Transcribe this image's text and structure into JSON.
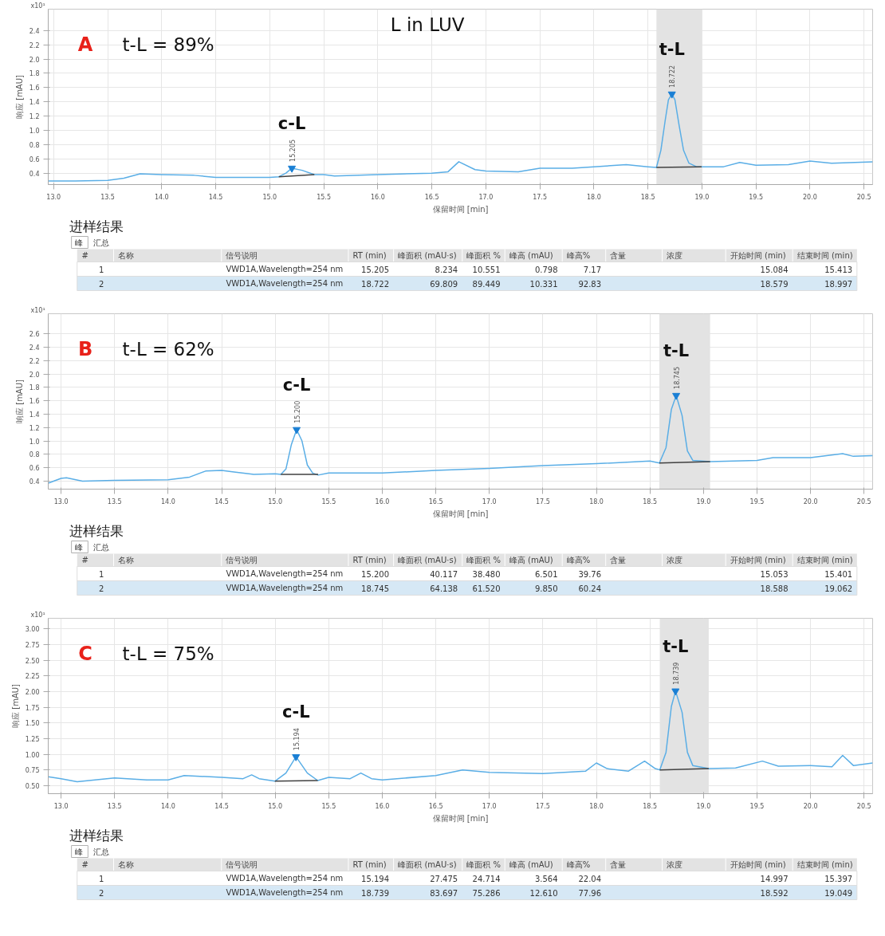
{
  "chart_data": [
    {
      "type": "line",
      "title": "A",
      "subtitle": "t-L = 89%",
      "xlabel": "保留时间 [min]",
      "ylabel": "响应 [mAU]",
      "annotations": [
        "x10¹",
        "L in LUV",
        {
          "text": "15.205",
          "x": 15.205,
          "y": 0.47
        },
        {
          "text": "c-L",
          "x": 15.205,
          "y": 0.47
        },
        {
          "text": "18.722",
          "x": 18.722,
          "y": 1.51
        },
        {
          "text": "t-L",
          "x": 18.722,
          "y": 1.51
        }
      ],
      "xlim": [
        12.95,
        20.58
      ],
      "ylim": [
        0.24,
        2.7
      ],
      "xticks": [
        {
          "value": 13,
          "label": "13.0"
        },
        13.5,
        {
          "value": 14,
          "label": "14.0"
        },
        14.5,
        {
          "value": 15,
          "label": "15.0"
        },
        15.5,
        {
          "value": 16,
          "label": "16.0"
        },
        16.5,
        {
          "value": 17,
          "label": "17.0"
        },
        17.5,
        {
          "value": 18,
          "label": "18.0"
        },
        18.5,
        {
          "value": 19,
          "label": "19.0"
        },
        19.5,
        {
          "value": 20,
          "label": "20.0"
        },
        20.5
      ],
      "yticks": [
        0.4,
        0.6,
        0.8,
        {
          "value": 1,
          "label": "1.0"
        },
        1.2,
        1.4,
        1.6,
        1.8,
        {
          "value": 2,
          "label": "2.0"
        },
        2.2,
        2.4
      ],
      "grid": true,
      "bands": [
        {
          "axis": "x",
          "from": 18.579,
          "to": 18.997,
          "color": "#e3e3e3"
        }
      ],
      "series": [
        {
          "type": "line",
          "color": "#5aaee6",
          "x": [
            12.95,
            13.2,
            13.5,
            13.65,
            13.8,
            14.0,
            14.3,
            14.5,
            14.8,
            15.0,
            15.084,
            15.15,
            15.205,
            15.3,
            15.413,
            15.5,
            15.6,
            16.0,
            16.5,
            16.65,
            16.75,
            16.9,
            17.0,
            17.3,
            17.5,
            17.8,
            18.0,
            18.3,
            18.5,
            18.579,
            18.62,
            18.66,
            18.69,
            18.722,
            18.75,
            18.79,
            18.83,
            18.88,
            18.95,
            18.997,
            19.2,
            19.35,
            19.5,
            19.8,
            20.0,
            20.2,
            20.58
          ],
          "values": [
            0.29,
            0.29,
            0.3,
            0.33,
            0.39,
            0.38,
            0.37,
            0.34,
            0.34,
            0.34,
            0.35,
            0.4,
            0.47,
            0.44,
            0.38,
            0.38,
            0.36,
            0.38,
            0.4,
            0.42,
            0.56,
            0.45,
            0.43,
            0.42,
            0.47,
            0.47,
            0.49,
            0.52,
            0.49,
            0.48,
            0.72,
            1.14,
            1.43,
            1.51,
            1.43,
            1.06,
            0.72,
            0.54,
            0.49,
            0.49,
            0.49,
            0.55,
            0.51,
            0.52,
            0.57,
            0.54,
            0.56
          ]
        },
        {
          "type": "line",
          "color": "#404040",
          "x": [
            15.084,
            15.413
          ],
          "values": [
            0.35,
            0.38
          ]
        },
        {
          "type": "line",
          "color": "#404040",
          "x": [
            18.579,
            18.997
          ],
          "values": [
            0.48,
            0.49
          ]
        },
        {
          "type": "scatter",
          "marker": "triangle",
          "color": "#1a7fd4",
          "x": [
            15.205,
            18.722
          ],
          "values": [
            0.47,
            1.51
          ]
        }
      ]
    },
    {
      "type": "other",
      "title": "进样结果",
      "annotations": [
        "峰",
        "汇总"
      ],
      "categories": [
        "#",
        "名称",
        "信号说明",
        "RT (min)",
        "峰面积 (mAU·s)",
        "峰面积 %",
        "峰高 (mAU)",
        "峰高%",
        "含量",
        "浓度",
        "开始时间 (min)",
        "结束时间 (min)"
      ],
      "cell_labels": [
        [
          "1",
          null,
          "VWD1A,Wavelength=254 nm",
          "15.205",
          "8.234",
          "10.551",
          "0.798",
          "7.17",
          null,
          null,
          "15.084",
          "15.413"
        ],
        [
          "2",
          null,
          "VWD1A,Wavelength=254 nm",
          "18.722",
          "69.809",
          "89.449",
          "10.331",
          "92.83",
          null,
          null,
          "18.579",
          "18.997"
        ]
      ],
      "colors": [
        "#e3e3e3",
        "#ffffff",
        "#d6e8f5"
      ]
    },
    {
      "type": "line",
      "title": "B",
      "subtitle": "t-L = 62%",
      "xlabel": "保留时间 [min]",
      "ylabel": "响应 [mAU]",
      "annotations": [
        "x10¹",
        {
          "text": "15.200",
          "x": 15.2,
          "y": 1.17
        },
        {
          "text": "c-L",
          "x": 15.2,
          "y": 1.17
        },
        {
          "text": "18.745",
          "x": 18.745,
          "y": 1.68
        },
        {
          "text": "t-L",
          "x": 18.745,
          "y": 1.68
        }
      ],
      "xlim": [
        12.88,
        20.58
      ],
      "ylim": [
        0.28,
        2.9
      ],
      "xticks": [
        {
          "value": 13,
          "label": "13.0"
        },
        13.5,
        {
          "value": 14,
          "label": "14.0"
        },
        14.5,
        {
          "value": 15,
          "label": "15.0"
        },
        15.5,
        {
          "value": 16,
          "label": "16.0"
        },
        16.5,
        {
          "value": 17,
          "label": "17.0"
        },
        17.5,
        {
          "value": 18,
          "label": "18.0"
        },
        18.5,
        {
          "value": 19,
          "label": "19.0"
        },
        19.5,
        {
          "value": 20,
          "label": "20.0"
        },
        20.5
      ],
      "yticks": [
        0.4,
        0.6,
        0.8,
        {
          "value": 1,
          "label": "1.0"
        },
        1.2,
        1.4,
        1.6,
        1.8,
        {
          "value": 2,
          "label": "2.0"
        },
        2.2,
        2.4,
        2.6
      ],
      "grid": true,
      "bands": [
        {
          "axis": "x",
          "from": 18.588,
          "to": 19.062,
          "color": "#e3e3e3"
        }
      ],
      "series": [
        {
          "type": "line",
          "color": "#5aaee6",
          "x": [
            12.88,
            13.0,
            13.05,
            13.2,
            13.5,
            14.0,
            14.2,
            14.35,
            14.5,
            14.6,
            14.8,
            15.0,
            15.053,
            15.1,
            15.15,
            15.2,
            15.25,
            15.3,
            15.35,
            15.401,
            15.5,
            16.0,
            16.5,
            17.0,
            17.5,
            18.0,
            18.5,
            18.588,
            18.65,
            18.7,
            18.745,
            18.8,
            18.85,
            18.9,
            19.062,
            19.5,
            19.65,
            20.0,
            20.3,
            20.4,
            20.58
          ],
          "values": [
            0.37,
            0.44,
            0.45,
            0.4,
            0.41,
            0.42,
            0.46,
            0.55,
            0.56,
            0.54,
            0.5,
            0.51,
            0.5,
            0.58,
            0.94,
            1.17,
            1.0,
            0.64,
            0.52,
            0.49,
            0.52,
            0.52,
            0.56,
            0.59,
            0.63,
            0.66,
            0.7,
            0.67,
            0.9,
            1.47,
            1.68,
            1.38,
            0.85,
            0.71,
            0.69,
            0.71,
            0.75,
            0.75,
            0.81,
            0.77,
            0.78
          ]
        },
        {
          "type": "line",
          "color": "#404040",
          "x": [
            15.053,
            15.401
          ],
          "values": [
            0.5,
            0.5
          ]
        },
        {
          "type": "line",
          "color": "#404040",
          "x": [
            18.588,
            19.062
          ],
          "values": [
            0.67,
            0.69
          ]
        },
        {
          "type": "scatter",
          "marker": "triangle",
          "color": "#1a7fd4",
          "x": [
            15.2,
            18.745
          ],
          "values": [
            1.17,
            1.68
          ]
        }
      ]
    },
    {
      "type": "other",
      "title": "进样结果",
      "annotations": [
        "峰",
        "汇总"
      ],
      "categories": [
        "#",
        "名称",
        "信号说明",
        "RT (min)",
        "峰面积 (mAU·s)",
        "峰面积 %",
        "峰高 (mAU)",
        "峰高%",
        "含量",
        "浓度",
        "开始时间 (min)",
        "结束时间 (min)"
      ],
      "cell_labels": [
        [
          "1",
          null,
          "VWD1A,Wavelength=254 nm",
          "15.200",
          "40.117",
          "38.480",
          "6.501",
          "39.76",
          null,
          null,
          "15.053",
          "15.401"
        ],
        [
          "2",
          null,
          "VWD1A,Wavelength=254 nm",
          "18.745",
          "64.138",
          "61.520",
          "9.850",
          "60.24",
          null,
          null,
          "18.588",
          "19.062"
        ]
      ],
      "colors": [
        "#e3e3e3",
        "#ffffff",
        "#d6e8f5"
      ]
    },
    {
      "type": "line",
      "title": "C",
      "subtitle": "t-L = 75%",
      "xlabel": "保留时间 [min]",
      "ylabel": "响应 [mAU]",
      "annotations": [
        "x10¹",
        {
          "text": "15.194",
          "x": 15.194,
          "y": 0.96
        },
        {
          "text": "c-L",
          "x": 15.194,
          "y": 0.96
        },
        {
          "text": "18.739",
          "x": 18.739,
          "y": 2.01
        },
        {
          "text": "t-L",
          "x": 18.739,
          "y": 2.01
        }
      ],
      "xlim": [
        12.88,
        20.58
      ],
      "ylim": [
        0.37,
        3.17
      ],
      "xticks": [
        {
          "value": 13,
          "label": "13.0"
        },
        13.5,
        {
          "value": 14,
          "label": "14.0"
        },
        14.5,
        {
          "value": 15,
          "label": "15.0"
        },
        15.5,
        {
          "value": 16,
          "label": "16.0"
        },
        16.5,
        {
          "value": 17,
          "label": "17.0"
        },
        17.5,
        {
          "value": 18,
          "label": "18.0"
        },
        18.5,
        {
          "value": 19,
          "label": "19.0"
        },
        19.5,
        {
          "value": 20,
          "label": "20.0"
        },
        20.5
      ],
      "yticks": [
        {
          "value": 0.5,
          "label": "0.50"
        },
        0.75,
        {
          "value": 1,
          "label": "1.00"
        },
        1.25,
        {
          "value": 1.5,
          "label": "1.50"
        },
        1.75,
        {
          "value": 2,
          "label": "2.00"
        },
        2.25,
        {
          "value": 2.5,
          "label": "2.50"
        },
        2.75,
        {
          "value": 3,
          "label": "3.00"
        }
      ],
      "grid": true,
      "bands": [
        {
          "axis": "x",
          "from": 18.592,
          "to": 19.049,
          "color": "#e3e3e3"
        }
      ],
      "series": [
        {
          "type": "line",
          "color": "#5aaee6",
          "x": [
            12.88,
            13.0,
            13.15,
            13.5,
            13.8,
            14.0,
            14.15,
            14.5,
            14.7,
            14.78,
            14.85,
            14.997,
            15.1,
            15.194,
            15.3,
            15.397,
            15.5,
            15.7,
            15.8,
            15.9,
            16.0,
            16.5,
            16.75,
            17.0,
            17.5,
            17.9,
            18.0,
            18.1,
            18.3,
            18.45,
            18.55,
            18.592,
            18.65,
            18.7,
            18.739,
            18.8,
            18.85,
            18.9,
            19.049,
            19.3,
            19.55,
            19.7,
            20.0,
            20.2,
            20.3,
            20.4,
            20.58
          ],
          "values": [
            0.64,
            0.61,
            0.56,
            0.62,
            0.59,
            0.59,
            0.66,
            0.63,
            0.61,
            0.67,
            0.61,
            0.57,
            0.7,
            0.96,
            0.7,
            0.58,
            0.63,
            0.61,
            0.7,
            0.61,
            0.59,
            0.66,
            0.75,
            0.71,
            0.69,
            0.73,
            0.86,
            0.77,
            0.73,
            0.89,
            0.77,
            0.75,
            1.03,
            1.76,
            2.01,
            1.67,
            1.03,
            0.82,
            0.77,
            0.78,
            0.89,
            0.81,
            0.82,
            0.8,
            0.98,
            0.82,
            0.86
          ]
        },
        {
          "type": "line",
          "color": "#404040",
          "x": [
            14.997,
            15.397
          ],
          "values": [
            0.57,
            0.58
          ]
        },
        {
          "type": "line",
          "color": "#404040",
          "x": [
            18.592,
            19.049
          ],
          "values": [
            0.75,
            0.77
          ]
        },
        {
          "type": "scatter",
          "marker": "triangle",
          "color": "#1a7fd4",
          "x": [
            15.194,
            18.739
          ],
          "values": [
            0.96,
            2.01
          ]
        }
      ]
    },
    {
      "type": "other",
      "title": "进样结果",
      "annotations": [
        "峰",
        "汇总"
      ],
      "categories": [
        "#",
        "名称",
        "信号说明",
        "RT (min)",
        "峰面积 (mAU·s)",
        "峰面积 %",
        "峰高 (mAU)",
        "峰高%",
        "含量",
        "浓度",
        "开始时间 (min)",
        "结束时间 (min)"
      ],
      "cell_labels": [
        [
          "1",
          null,
          "VWD1A,Wavelength=254 nm",
          "15.194",
          "27.475",
          "24.714",
          "3.564",
          "22.04",
          null,
          null,
          "14.997",
          "15.397"
        ],
        [
          "2",
          null,
          "VWD1A,Wavelength=254 nm",
          "18.739",
          "83.697",
          "75.286",
          "12.610",
          "77.96",
          null,
          null,
          "18.592",
          "19.049"
        ]
      ],
      "colors": [
        "#e3e3e3",
        "#ffffff",
        "#d6e8f5"
      ]
    }
  ]
}
